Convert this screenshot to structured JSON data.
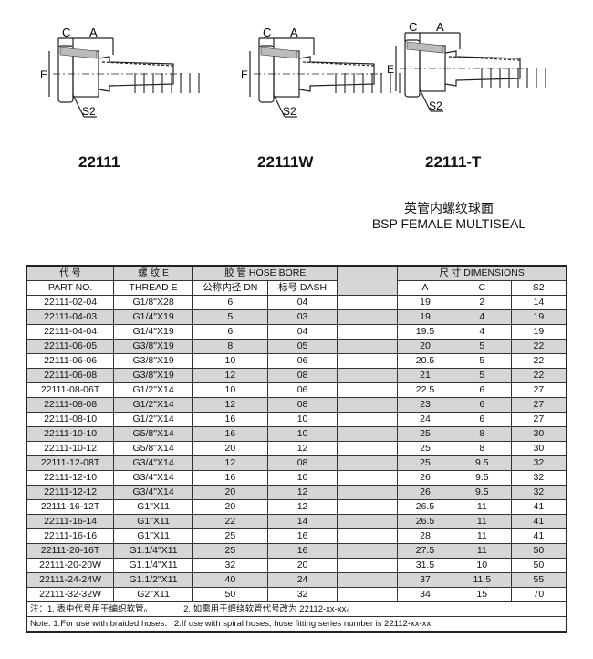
{
  "drawings": [
    {
      "model": "22111",
      "labels": {
        "c": "C",
        "a": "A",
        "e": "E",
        "s2": "S2"
      }
    },
    {
      "model": "22111W",
      "labels": {
        "c": "C",
        "a": "A",
        "e": "E",
        "s2": "S2"
      }
    },
    {
      "model": "22111-T",
      "labels": {
        "c": "C",
        "a": "A",
        "e": "E",
        "s2": "S2"
      }
    }
  ],
  "caption": {
    "cn": "英管内螺纹球面",
    "en": "BSP FEMALE MULTISEAL"
  },
  "table": {
    "header1": {
      "part_cn": "代 号",
      "thread_cn": "螺 纹 E",
      "hose": "胶 管 HOSE BORE",
      "dims": "尺 寸 DIMENSIONS"
    },
    "header2": {
      "part": "PART NO.",
      "thread": "THREAD E",
      "dn": "公称内径 DN",
      "dash": "标号 DASH",
      "a": "A",
      "c": "C",
      "s2": "S2"
    },
    "rows": [
      [
        "22111-02-04",
        "G1/8\"X28",
        "6",
        "04",
        "19",
        "2",
        "14"
      ],
      [
        "22111-04-03",
        "G1/4\"X19",
        "5",
        "03",
        "19",
        "4",
        "19"
      ],
      [
        "22111-04-04",
        "G1/4\"X19",
        "6",
        "04",
        "19.5",
        "4",
        "19"
      ],
      [
        "22111-06-05",
        "G3/8\"X19",
        "8",
        "05",
        "20",
        "5",
        "22"
      ],
      [
        "22111-06-06",
        "G3/8\"X19",
        "10",
        "06",
        "20.5",
        "5",
        "22"
      ],
      [
        "22111-06-08",
        "G3/8\"X19",
        "12",
        "08",
        "21",
        "5",
        "22"
      ],
      [
        "22111-08-06T",
        "G1/2\"X14",
        "10",
        "06",
        "22.5",
        "6",
        "27"
      ],
      [
        "22111-08-08",
        "G1/2\"X14",
        "12",
        "08",
        "23",
        "6",
        "27"
      ],
      [
        "22111-08-10",
        "G1/2\"X14",
        "16",
        "10",
        "24",
        "6",
        "27"
      ],
      [
        "22111-10-10",
        "G5/8\"X14",
        "16",
        "10",
        "25",
        "8",
        "30"
      ],
      [
        "22111-10-12",
        "G5/8\"X14",
        "20",
        "12",
        "25",
        "8",
        "30"
      ],
      [
        "22111-12-08T",
        "G3/4\"X14",
        "12",
        "08",
        "25",
        "9.5",
        "32"
      ],
      [
        "22111-12-10",
        "G3/4\"X14",
        "16",
        "10",
        "26",
        "9.5",
        "32"
      ],
      [
        "22111-12-12",
        "G3/4\"X14",
        "20",
        "12",
        "26",
        "9.5",
        "32"
      ],
      [
        "22111-16-12T",
        "G1\"X11",
        "20",
        "12",
        "26.5",
        "11",
        "41"
      ],
      [
        "22111-16-14",
        "G1\"X11",
        "22",
        "14",
        "26.5",
        "11",
        "41"
      ],
      [
        "22111-16-16",
        "G1\"X11",
        "25",
        "16",
        "28",
        "11",
        "41"
      ],
      [
        "22111-20-16T",
        "G1.1/4\"X11",
        "25",
        "16",
        "27.5",
        "11",
        "50"
      ],
      [
        "22111-20-20W",
        "G1.1/4\"X11",
        "32",
        "20",
        "31.5",
        "10",
        "50"
      ],
      [
        "22111-24-24W",
        "G1.1/2\"X11",
        "40",
        "24",
        "37",
        "11.5",
        "55"
      ],
      [
        "22111-32-32W",
        "G2\"X11",
        "50",
        "32",
        "34",
        "15",
        "70"
      ]
    ],
    "notes": {
      "cn1": "注：1. 表中代号用于编织软管。",
      "cn2": "2. 如需用于缠绕软管代号改为 22112-xx-xx。",
      "en1": "Note: 1.For use with braided hoses.",
      "en2": "2.If use with spiral hoses, hose fitting series number is 22112-xx-xx."
    }
  }
}
